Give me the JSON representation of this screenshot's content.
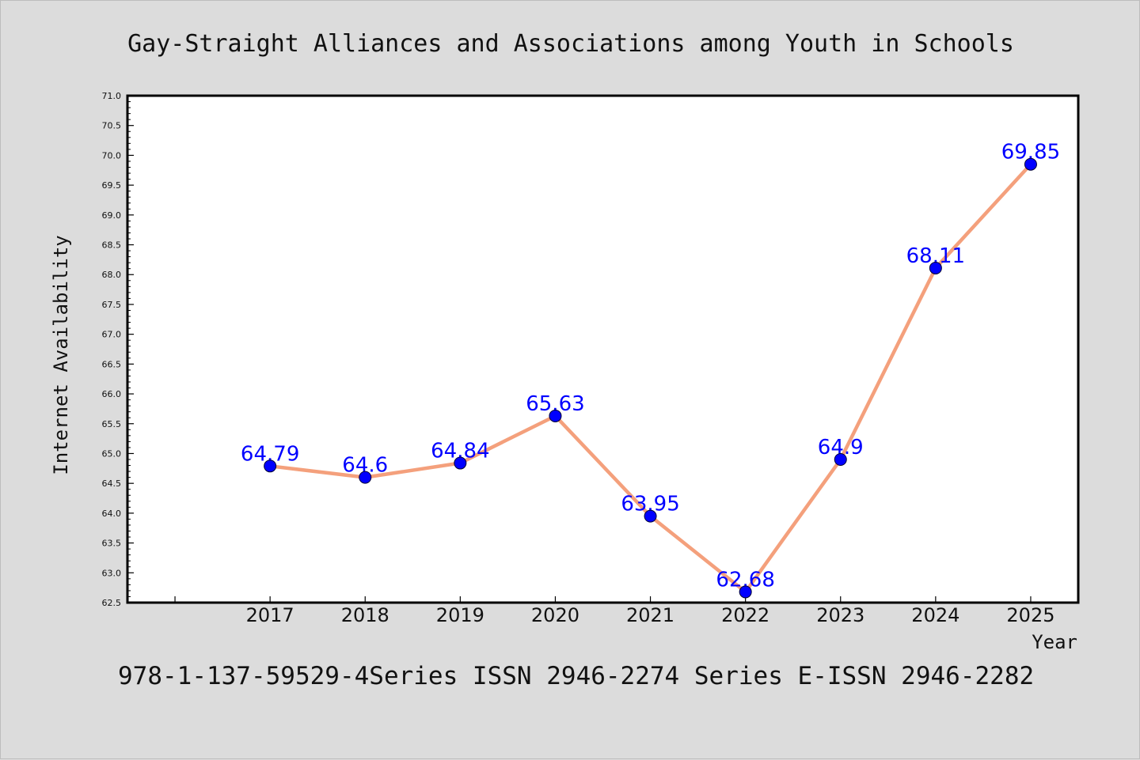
{
  "title": "Gay-Straight Alliances and Associations among Youth in Schools",
  "footer": "978-1-137-59529-4Series ISSN 2946-2274 Series E-ISSN 2946-2282",
  "colors": {
    "background": "#dcdcdc",
    "plot_background": "#ffffff",
    "line": "#f4a07c",
    "marker": "#0000ff",
    "data_label": "#0000ff"
  },
  "chart_data": {
    "type": "line",
    "title": "Gay-Straight Alliances and Associations among Youth in Schools",
    "xlabel": "Year",
    "ylabel": "Internet Availability",
    "x": [
      2017,
      2018,
      2019,
      2020,
      2021,
      2022,
      2023,
      2024,
      2025
    ],
    "x_tick_labels": [
      "2017",
      "2018",
      "2019",
      "2020",
      "2021",
      "2022",
      "2023",
      "2024",
      "2025"
    ],
    "xlim": [
      2015.5,
      2025.5
    ],
    "ylim": [
      62.5,
      71.0
    ],
    "y_ticks": [
      "62.5",
      "63.0",
      "63.5",
      "64.0",
      "64.5",
      "65.0",
      "65.5",
      "66.0",
      "66.5",
      "67.0",
      "67.5",
      "68.0",
      "68.5",
      "69.0",
      "69.5",
      "70.0",
      "70.5",
      "71.0"
    ],
    "series": [
      {
        "values": [
          64.79,
          64.6,
          64.84,
          65.63,
          63.95,
          62.68,
          64.9,
          68.11,
          69.85
        ],
        "labels": [
          "64.79",
          "64.6",
          "64.84",
          "65.63",
          "63.95",
          "62.68",
          "64.9",
          "68.11",
          "69.85"
        ]
      }
    ],
    "grid": false,
    "legend": "none"
  }
}
